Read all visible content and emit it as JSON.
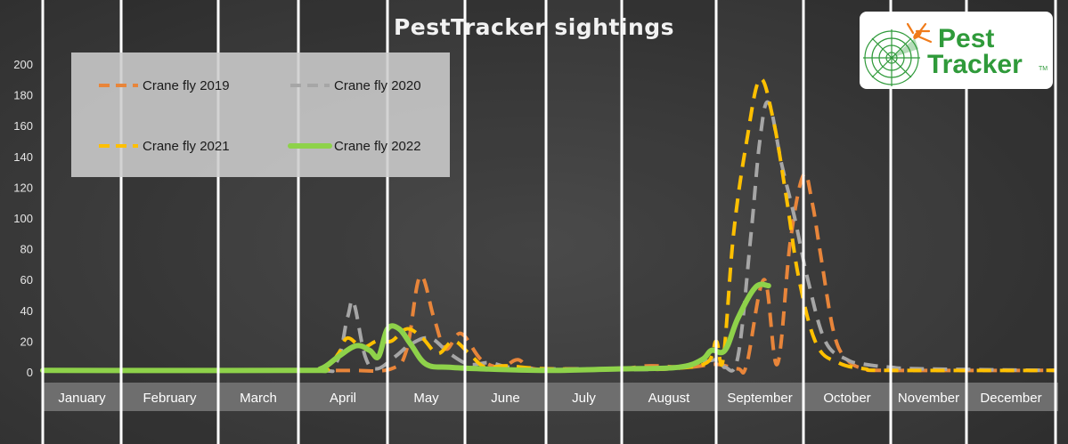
{
  "chart_data": {
    "type": "line",
    "title": "PestTracker sightings",
    "xlabel": "",
    "ylabel": "",
    "ylim": [
      0,
      200
    ],
    "yticks": [
      0,
      20,
      40,
      60,
      80,
      100,
      120,
      140,
      160,
      180,
      200
    ],
    "months": [
      "January",
      "February",
      "March",
      "April",
      "May",
      "June",
      "July",
      "August",
      "September",
      "October",
      "November",
      "December"
    ],
    "grid": false,
    "legend_position": "top-left",
    "series": [
      {
        "name": "Crane fly 2019",
        "color": "#e8853a",
        "style": "dashed",
        "points": [
          [
            0.0,
            1
          ],
          [
            3.0,
            1
          ],
          [
            3.3,
            1
          ],
          [
            3.6,
            1
          ],
          [
            4.05,
            2
          ],
          [
            4.25,
            15
          ],
          [
            4.42,
            62
          ],
          [
            4.6,
            35
          ],
          [
            4.75,
            15
          ],
          [
            4.95,
            25
          ],
          [
            5.2,
            8
          ],
          [
            5.45,
            3
          ],
          [
            5.65,
            8
          ],
          [
            5.85,
            2
          ],
          [
            6.5,
            1
          ],
          [
            7.0,
            2
          ],
          [
            7.3,
            4
          ],
          [
            7.7,
            3
          ],
          [
            8.0,
            5
          ],
          [
            8.25,
            2
          ],
          [
            8.35,
            5
          ],
          [
            8.55,
            60
          ],
          [
            8.7,
            5
          ],
          [
            8.85,
            85
          ],
          [
            9.0,
            128
          ],
          [
            9.1,
            110
          ],
          [
            9.2,
            75
          ],
          [
            9.35,
            25
          ],
          [
            9.5,
            8
          ],
          [
            9.7,
            2
          ],
          [
            10.0,
            1
          ],
          [
            12.0,
            1
          ]
        ]
      },
      {
        "name": "Crane fly 2020",
        "color": "#a6a6a6",
        "style": "dashed",
        "points": [
          [
            0.0,
            1
          ],
          [
            3.0,
            1
          ],
          [
            3.4,
            4
          ],
          [
            3.55,
            35
          ],
          [
            3.62,
            45
          ],
          [
            3.75,
            10
          ],
          [
            3.88,
            2
          ],
          [
            4.1,
            10
          ],
          [
            4.3,
            18
          ],
          [
            4.55,
            22
          ],
          [
            4.8,
            12
          ],
          [
            5.05,
            5
          ],
          [
            5.3,
            6
          ],
          [
            5.55,
            3
          ],
          [
            6.0,
            2
          ],
          [
            6.5,
            2
          ],
          [
            7.5,
            2
          ],
          [
            8.0,
            8
          ],
          [
            8.1,
            3
          ],
          [
            8.25,
            10
          ],
          [
            8.4,
            90
          ],
          [
            8.5,
            150
          ],
          [
            8.6,
            175
          ],
          [
            8.75,
            135
          ],
          [
            8.9,
            100
          ],
          [
            9.05,
            60
          ],
          [
            9.25,
            20
          ],
          [
            9.5,
            8
          ],
          [
            9.7,
            5
          ],
          [
            10.0,
            3
          ],
          [
            10.4,
            2
          ],
          [
            12.0,
            1
          ]
        ]
      },
      {
        "name": "Crane fly 2021",
        "color": "#ffc000",
        "style": "dashed",
        "points": [
          [
            0.0,
            1
          ],
          [
            3.0,
            1
          ],
          [
            3.3,
            3
          ],
          [
            3.45,
            12
          ],
          [
            3.55,
            22
          ],
          [
            3.72,
            16
          ],
          [
            3.88,
            20
          ],
          [
            4.05,
            20
          ],
          [
            4.25,
            28
          ],
          [
            4.45,
            22
          ],
          [
            4.65,
            12
          ],
          [
            4.85,
            20
          ],
          [
            5.05,
            12
          ],
          [
            5.25,
            3
          ],
          [
            5.5,
            4
          ],
          [
            6.0,
            2
          ],
          [
            7.0,
            2
          ],
          [
            7.5,
            2
          ],
          [
            7.9,
            6
          ],
          [
            8.0,
            20
          ],
          [
            8.08,
            8
          ],
          [
            8.2,
            90
          ],
          [
            8.35,
            150
          ],
          [
            8.5,
            190
          ],
          [
            8.65,
            165
          ],
          [
            8.8,
            115
          ],
          [
            8.95,
            60
          ],
          [
            9.15,
            18
          ],
          [
            9.4,
            6
          ],
          [
            9.7,
            2
          ],
          [
            10.0,
            1
          ],
          [
            12.0,
            1
          ]
        ]
      },
      {
        "name": "Crane fly 2022",
        "color": "#8ed24a",
        "style": "solid",
        "points": [
          [
            0.0,
            1
          ],
          [
            3.0,
            1
          ],
          [
            3.25,
            2
          ],
          [
            3.45,
            10
          ],
          [
            3.65,
            17
          ],
          [
            3.8,
            14
          ],
          [
            3.9,
            10
          ],
          [
            4.0,
            28
          ],
          [
            4.15,
            28
          ],
          [
            4.3,
            18
          ],
          [
            4.5,
            5
          ],
          [
            4.8,
            3
          ],
          [
            5.2,
            2
          ],
          [
            6.0,
            1
          ],
          [
            7.0,
            2
          ],
          [
            7.6,
            3
          ],
          [
            7.85,
            8
          ],
          [
            7.95,
            14
          ],
          [
            8.1,
            14
          ],
          [
            8.25,
            35
          ],
          [
            8.45,
            55
          ],
          [
            8.6,
            56
          ]
        ]
      }
    ]
  }
}
